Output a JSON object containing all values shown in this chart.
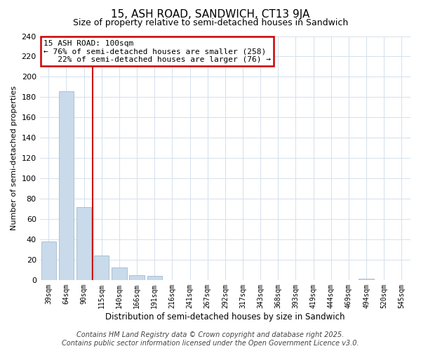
{
  "title": "15, ASH ROAD, SANDWICH, CT13 9JA",
  "subtitle": "Size of property relative to semi-detached houses in Sandwich",
  "xlabel": "Distribution of semi-detached houses by size in Sandwich",
  "ylabel": "Number of semi-detached properties",
  "categories": [
    "39sqm",
    "64sqm",
    "90sqm",
    "115sqm",
    "140sqm",
    "166sqm",
    "191sqm",
    "216sqm",
    "241sqm",
    "267sqm",
    "292sqm",
    "317sqm",
    "343sqm",
    "368sqm",
    "393sqm",
    "419sqm",
    "444sqm",
    "469sqm",
    "494sqm",
    "520sqm",
    "545sqm"
  ],
  "values": [
    38,
    186,
    72,
    24,
    12,
    5,
    4,
    0,
    0,
    0,
    0,
    0,
    0,
    0,
    0,
    0,
    0,
    0,
    1,
    0,
    0
  ],
  "bar_color": "#c9daea",
  "bar_edge_color": "#a0bcd0",
  "annotation_text": "15 ASH ROAD: 100sqm\n← 76% of semi-detached houses are smaller (258)\n   22% of semi-detached houses are larger (76) →",
  "annotation_box_color": "#ffffff",
  "annotation_box_edge": "#cc0000",
  "vline_color": "#cc0000",
  "vline_x": 2.48,
  "ylim": [
    0,
    240
  ],
  "yticks": [
    0,
    20,
    40,
    60,
    80,
    100,
    120,
    140,
    160,
    180,
    200,
    220,
    240
  ],
  "footer1": "Contains HM Land Registry data © Crown copyright and database right 2025.",
  "footer2": "Contains public sector information licensed under the Open Government Licence v3.0.",
  "bg_color": "#ffffff",
  "grid_color": "#d4e0ec",
  "title_fontsize": 11,
  "subtitle_fontsize": 9,
  "footer_fontsize": 7
}
